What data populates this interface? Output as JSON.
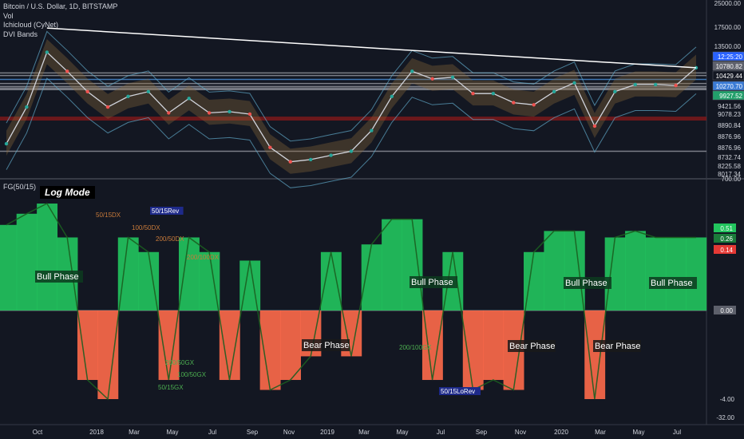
{
  "legend": {
    "title": "Bitcoin / U.S. Dollar, 1D, BITSTAMP",
    "volume": "Vol",
    "cloud": "Ichicloud (CyNet)",
    "bands": "DVI Bands"
  },
  "lower_pane": {
    "label": "FG(50/15)",
    "mode": "Log Mode"
  },
  "colors": {
    "background": "#131722",
    "bull": "#22c55e",
    "bear": "#ff6a4a",
    "band": "#4a90d9",
    "cloud": "#8b6b3a",
    "trendline": "#ffffff"
  },
  "chart_data": [
    {
      "type": "line",
      "scale": "log",
      "x": [
        "2017-10",
        "2017-11",
        "2017-12",
        "2018-01",
        "2018-02",
        "2018-03",
        "2018-04",
        "2018-05",
        "2018-06",
        "2018-07",
        "2018-08",
        "2018-09",
        "2018-10",
        "2018-11",
        "2018-12",
        "2019-01",
        "2019-02",
        "2019-03",
        "2019-04",
        "2019-05",
        "2019-06",
        "2019-07",
        "2019-08",
        "2019-09",
        "2019-10",
        "2019-11",
        "2019-12",
        "2020-01",
        "2020-02",
        "2020-03",
        "2020-04",
        "2020-05",
        "2020-06",
        "2020-07",
        "2020-08"
      ],
      "series": [
        {
          "values": [
            4400,
            7000,
            14000,
            11000,
            8500,
            7000,
            8000,
            8500,
            6500,
            7800,
            6500,
            6600,
            6400,
            4200,
            3500,
            3600,
            3800,
            4000,
            5200,
            8000,
            11000,
            10000,
            10200,
            8300,
            8300,
            7400,
            7200,
            8500,
            9500,
            5500,
            8500,
            9300,
            9300,
            9200,
            11500
          ]
        }
      ],
      "y_tick_labels": [
        "25000.00",
        "17500.00",
        "13500.00",
        "10429.44",
        "9921.56",
        "9421.56",
        "9078.23",
        "8890.84",
        "8876.96",
        "8876.96",
        "8732.74",
        "8225.58",
        "8017.34",
        "700.00"
      ],
      "price_labels": [
        "12:25:20",
        "10780.82",
        "10429.44",
        "10270.70",
        "9927.52"
      ],
      "trendline": {
        "from": [
          "2017-12",
          19000
        ],
        "to": [
          "2020-08",
          11500
        ]
      }
    },
    {
      "type": "area",
      "scale": "log",
      "x": [
        "2017-10",
        "2017-11",
        "2017-12",
        "2018-01",
        "2018-02",
        "2018-03",
        "2018-04",
        "2018-05",
        "2018-06",
        "2018-07",
        "2018-08",
        "2018-09",
        "2018-10",
        "2018-11",
        "2018-12",
        "2019-01",
        "2019-02",
        "2019-03",
        "2019-04",
        "2019-05",
        "2019-06",
        "2019-07",
        "2019-08",
        "2019-09",
        "2019-10",
        "2019-11",
        "2019-12",
        "2020-01",
        "2020-02",
        "2020-03",
        "2020-04",
        "2020-05",
        "2020-06",
        "2020-07",
        "2020-08"
      ],
      "x_tick_labels": [
        "Oct",
        "2018",
        "Mar",
        "May",
        "Jul",
        "Sep",
        "Nov",
        "2019",
        "Mar",
        "May",
        "Jul",
        "Sep",
        "Nov",
        "2020",
        "Mar",
        "May",
        "Jul"
      ],
      "series": [
        {
          "values": [
            0.4,
            0.5,
            0.6,
            0.3,
            -2,
            -3,
            0.3,
            0.2,
            -2,
            0.3,
            0.2,
            -2,
            0.15,
            -2.5,
            -2,
            -1,
            0.2,
            -1,
            0.25,
            0.45,
            0.45,
            -2,
            0.2,
            -2.5,
            -2,
            -2.5,
            0.2,
            0.35,
            0.35,
            -3,
            0.3,
            0.35,
            0.3,
            0.3,
            0.3
          ]
        }
      ],
      "y_tick_labels": [
        "0.51",
        "0.26",
        "0.14",
        "0.00",
        "-4.00",
        "-32.00"
      ],
      "annotations": [
        "Bull Phase",
        "Bull Phase",
        "Bull Phase",
        "Bull Phase",
        "Bear Phase",
        "Bear Phase",
        "Bear Phase",
        "50/15DX",
        "100/50DX",
        "200/50DX",
        "200/100DX",
        "50/15GX",
        "100/50GX",
        "200/50GX",
        "200/100GX",
        "50/15Rev",
        "50/15LoRev"
      ]
    }
  ]
}
